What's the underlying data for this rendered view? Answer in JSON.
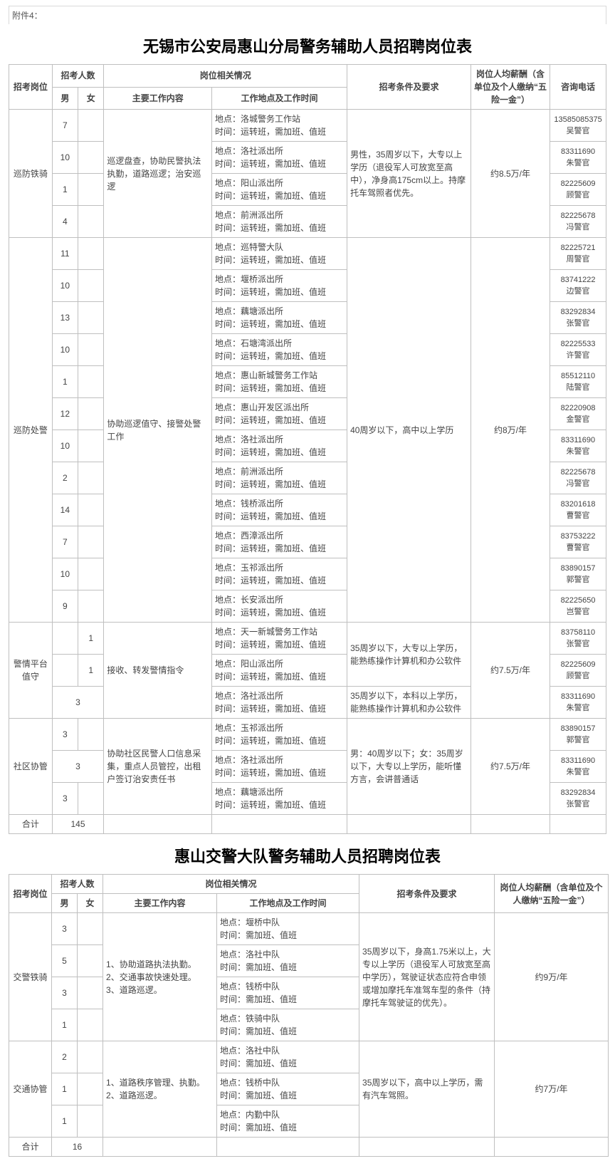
{
  "attachment_label": "附件4：",
  "table1": {
    "title": "无锡市公安局惠山分局警务辅助人员招聘岗位表",
    "headers": {
      "position": "招考岗位",
      "count": "招考人数",
      "male": "男",
      "female": "女",
      "situation": "岗位相关情况",
      "main_work": "主要工作内容",
      "loc_time": "工作地点及工作时间",
      "requirements": "招考条件及要求",
      "salary": "岗位人均薪酬（含单位及个人缴纳“五险一金”）",
      "tel": "咨询电话"
    },
    "groups": [
      {
        "position": "巡防铁骑",
        "work": "巡逻盘查，协助民警执法执勤，道路巡逻；治安巡逻",
        "req": "男性，35周岁以下，大专以上学历（退役军人可放宽至高中），净身高175cm以上。持摩托车驾照者优先。",
        "salary": "约8.5万/年",
        "rows": [
          {
            "m": "7",
            "f": "",
            "loc": "地点：洛城警务工作站",
            "time": "时间：运转班，需加班、值班",
            "tel": "13585085375\n吴警官"
          },
          {
            "m": "10",
            "f": "",
            "loc": "地点：洛社派出所",
            "time": "时间：运转班，需加班、值班",
            "tel": "83311690\n朱警官"
          },
          {
            "m": "1",
            "f": "",
            "loc": "地点：阳山派出所",
            "time": "时间：运转班，需加班、值班",
            "tel": "82225609\n顾警官"
          },
          {
            "m": "4",
            "f": "",
            "loc": "地点：前洲派出所",
            "time": "时间：运转班，需加班、值班",
            "tel": "82225678\n冯警官"
          }
        ]
      },
      {
        "position": "巡防处警",
        "work": "协助巡逻值守、接警处警工作",
        "req": "40周岁以下，高中以上学历",
        "salary": "约8万/年",
        "rows": [
          {
            "m": "11",
            "f": "",
            "loc": "地点：巡特警大队",
            "time": "时间：运转班，需加班、值班",
            "tel": "82225721\n周警官"
          },
          {
            "m": "10",
            "f": "",
            "loc": "地点：堰桥派出所",
            "time": "时间：运转班，需加班、值班",
            "tel": "83741222\n边警官"
          },
          {
            "m": "13",
            "f": "",
            "loc": "地点：藕塘派出所",
            "time": "时间：运转班，需加班、值班",
            "tel": "83292834\n张警官"
          },
          {
            "m": "10",
            "f": "",
            "loc": "地点：石塘湾派出所",
            "time": "时间：运转班，需加班、值班",
            "tel": "82225533\n许警官"
          },
          {
            "m": "1",
            "f": "",
            "loc": "地点：惠山新城警务工作站",
            "time": "时间：运转班，需加班、值班",
            "tel": "85512110\n陆警官"
          },
          {
            "m": "12",
            "f": "",
            "loc": "地点：惠山开发区派出所",
            "time": "时间：运转班，需加班、值班",
            "tel": "82220908\n金警官"
          },
          {
            "m": "10",
            "f": "",
            "loc": "地点：洛社派出所",
            "time": "时间：运转班，需加班、值班",
            "tel": "83311690\n朱警官"
          },
          {
            "m": "2",
            "f": "",
            "loc": "地点：前洲派出所",
            "time": "时间：运转班，需加班、值班",
            "tel": "82225678\n冯警官"
          },
          {
            "m": "14",
            "f": "",
            "loc": "地点：钱桥派出所",
            "time": "时间：运转班，需加班、值班",
            "tel": "83201618\n曹警官"
          },
          {
            "m": "7",
            "f": "",
            "loc": "地点：西漳派出所",
            "time": "时间：运转班，需加班、值班",
            "tel": "83753222\n曹警官"
          },
          {
            "m": "10",
            "f": "",
            "loc": "地点：玉祁派出所",
            "time": "时间：运转班，需加班、值班",
            "tel": "83890157\n郭警官"
          },
          {
            "m": "9",
            "f": "",
            "loc": "地点：长安派出所",
            "time": "时间：运转班，需加班、值班",
            "tel": "82225650\n岂警官"
          }
        ]
      }
    ],
    "group3": {
      "position": "警情平台值守",
      "work": "接收、转发警情指令",
      "salary": "约7.5万/年",
      "rows": [
        {
          "m": "",
          "f": "1",
          "loc": "地点：天一新城警务工作站",
          "time": "时间：运转班，需加班、值班",
          "req": "35周岁以下，大专以上学历，能熟练操作计算机和办公软件",
          "tel": "83758110\n张警官",
          "req_span": 2
        },
        {
          "m": "",
          "f": "1",
          "loc": "地点：阳山派出所",
          "time": "时间：运转班，需加班、值班",
          "req": "",
          "tel": "82225609\n顾警官"
        },
        {
          "mf": "3",
          "loc": "地点：洛社派出所",
          "time": "时间：运转班，需加班、值班",
          "req": "35周岁以下，本科以上学历，能熟练操作计算机和办公软件",
          "tel": "83311690\n朱警官"
        }
      ]
    },
    "group4": {
      "position": "社区协管",
      "work": "协助社区民警人口信息采集，重点人员管控，出租户签订治安责任书",
      "req": "男：40周岁以下；女：35周岁以下，大专以上学历，能听懂方言，会讲普通话",
      "salary": "约7.5万/年",
      "rows": [
        {
          "m": "3",
          "f": "",
          "loc": "地点：玉祁派出所",
          "time": "时间：运转班，需加班、值班",
          "tel": "83890157\n郭警官"
        },
        {
          "mf": "3",
          "loc": "地点：洛社派出所",
          "time": "时间：运转班，需加班、值班",
          "tel": "83311690\n朱警官"
        },
        {
          "m": "3",
          "f": "",
          "loc": "地点：藕塘派出所",
          "time": "时间：运转班，需加班、值班",
          "tel": "83292834\n张警官"
        }
      ]
    },
    "total_label": "合计",
    "total_value": "145"
  },
  "table2": {
    "title": "惠山交警大队警务辅助人员招聘岗位表",
    "headers": {
      "position": "招考岗位",
      "count": "招考人数",
      "male": "男",
      "female": "女",
      "situation": "岗位相关情况",
      "main_work": "主要工作内容",
      "loc_time": "工作地点及工作时间",
      "requirements": "招考条件及要求",
      "salary": "岗位人均薪酬（含单位及个人缴纳“五险一金”）"
    },
    "groups": [
      {
        "position": "交警铁骑",
        "work": "1、协助道路执法执勤。\n2、交通事故快速处理。\n3、道路巡逻。",
        "req": "35周岁以下，身高1.75米以上，大专以上学历（退役军人可放宽至高中学历），驾驶证状态应符合申领或增加摩托车准驾车型的条件（持摩托车驾驶证的优先）。",
        "salary": "约9万/年",
        "rows": [
          {
            "m": "3",
            "f": "",
            "loc": "地点：堰桥中队",
            "time": "时间：需加班、值班"
          },
          {
            "m": "5",
            "f": "",
            "loc": "地点：洛社中队",
            "time": "时间：需加班、值班"
          },
          {
            "m": "3",
            "f": "",
            "loc": "地点：钱桥中队",
            "time": "时间：需加班、值班"
          },
          {
            "m": "1",
            "f": "",
            "loc": "地点：铁骑中队",
            "time": "时间：需加班、值班"
          }
        ]
      },
      {
        "position": "交通协管",
        "work": "1、道路秩序管理、执勤。\n2、道路巡逻。",
        "req": "35周岁以下，高中以上学历，需有汽车驾照。",
        "salary": "约7万/年",
        "rows": [
          {
            "m": "2",
            "f": "",
            "loc": "地点：洛社中队",
            "time": "时间：需加班、值班"
          },
          {
            "m": "1",
            "f": "",
            "loc": "地点：钱桥中队",
            "time": "时间：需加班、值班"
          },
          {
            "m": "1",
            "f": "",
            "loc": "地点：内勤中队",
            "time": "时间：需加班、值班"
          }
        ]
      }
    ],
    "total_label": "合计",
    "total_value": "16"
  }
}
